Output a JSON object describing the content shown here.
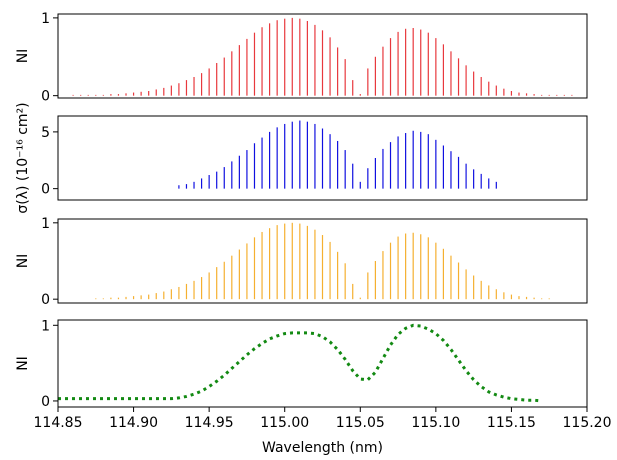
{
  "chart_data": [
    {
      "type": "stem",
      "y_label": "NI",
      "color": "#e8383d",
      "ylim": [
        -0.03,
        1.05
      ],
      "yticks": [
        0,
        1
      ],
      "xlim": [
        114.85,
        115.2
      ],
      "x": [
        114.86,
        114.865,
        114.87,
        114.875,
        114.88,
        114.885,
        114.89,
        114.895,
        114.9,
        114.905,
        114.91,
        114.915,
        114.92,
        114.925,
        114.93,
        114.935,
        114.94,
        114.945,
        114.95,
        114.955,
        114.96,
        114.965,
        114.97,
        114.975,
        114.98,
        114.985,
        114.99,
        114.995,
        115,
        115.005,
        115.01,
        115.015,
        115.02,
        115.025,
        115.03,
        115.035,
        115.04,
        115.045,
        115.05,
        115.055,
        115.06,
        115.065,
        115.07,
        115.075,
        115.08,
        115.085,
        115.09,
        115.095,
        115.1,
        115.105,
        115.11,
        115.115,
        115.12,
        115.125,
        115.13,
        115.135,
        115.14,
        115.145,
        115.15,
        115.155,
        115.16,
        115.165,
        115.17,
        115.175,
        115.18,
        115.185,
        115.19
      ],
      "values": [
        0.01,
        0.01,
        0.01,
        0.01,
        0.01,
        0.02,
        0.02,
        0.03,
        0.04,
        0.05,
        0.06,
        0.08,
        0.1,
        0.13,
        0.16,
        0.2,
        0.24,
        0.29,
        0.35,
        0.42,
        0.49,
        0.57,
        0.65,
        0.73,
        0.81,
        0.88,
        0.93,
        0.97,
        0.99,
        1.0,
        0.99,
        0.96,
        0.91,
        0.84,
        0.75,
        0.62,
        0.47,
        0.2,
        0.02,
        0.35,
        0.5,
        0.63,
        0.74,
        0.82,
        0.86,
        0.87,
        0.85,
        0.81,
        0.74,
        0.66,
        0.57,
        0.48,
        0.39,
        0.31,
        0.24,
        0.18,
        0.13,
        0.09,
        0.06,
        0.04,
        0.03,
        0.02,
        0.01,
        0.01,
        0.01,
        0.01,
        0.01
      ]
    },
    {
      "type": "stem",
      "y_label": "σ(λ) (10⁻¹⁶ cm²)",
      "color": "#1010e0",
      "ylim": [
        -1,
        6.4
      ],
      "yticks": [
        0,
        5
      ],
      "xlim": [
        114.85,
        115.2
      ],
      "x": [
        114.93,
        114.935,
        114.94,
        114.945,
        114.95,
        114.955,
        114.96,
        114.965,
        114.97,
        114.975,
        114.98,
        114.985,
        114.99,
        114.995,
        115,
        115.005,
        115.01,
        115.015,
        115.02,
        115.025,
        115.03,
        115.035,
        115.04,
        115.045,
        115.05,
        115.055,
        115.06,
        115.065,
        115.07,
        115.075,
        115.08,
        115.085,
        115.09,
        115.095,
        115.1,
        115.105,
        115.11,
        115.115,
        115.12,
        115.125,
        115.13,
        115.135,
        115.14
      ],
      "values": [
        0.3,
        0.4,
        0.6,
        0.9,
        1.2,
        1.5,
        1.9,
        2.4,
        2.9,
        3.4,
        4.0,
        4.5,
        5.0,
        5.4,
        5.7,
        5.9,
        6.0,
        5.9,
        5.7,
        5.3,
        4.8,
        4.2,
        3.4,
        2.2,
        0.6,
        1.8,
        2.7,
        3.5,
        4.1,
        4.6,
        4.9,
        5.1,
        5.0,
        4.8,
        4.3,
        3.8,
        3.3,
        2.8,
        2.2,
        1.7,
        1.3,
        0.9,
        0.6
      ]
    },
    {
      "type": "stem",
      "y_label": "NI",
      "color": "#f5b030",
      "ylim": [
        -0.05,
        1.05
      ],
      "yticks": [
        0,
        1
      ],
      "xlim": [
        114.85,
        115.2
      ],
      "x": [
        114.875,
        114.88,
        114.885,
        114.89,
        114.895,
        114.9,
        114.905,
        114.91,
        114.915,
        114.92,
        114.925,
        114.93,
        114.935,
        114.94,
        114.945,
        114.95,
        114.955,
        114.96,
        114.965,
        114.97,
        114.975,
        114.98,
        114.985,
        114.99,
        114.995,
        115,
        115.005,
        115.01,
        115.015,
        115.02,
        115.025,
        115.03,
        115.035,
        115.04,
        115.045,
        115.05,
        115.055,
        115.06,
        115.065,
        115.07,
        115.075,
        115.08,
        115.085,
        115.09,
        115.095,
        115.1,
        115.105,
        115.11,
        115.115,
        115.12,
        115.125,
        115.13,
        115.135,
        115.14,
        115.145,
        115.15,
        115.155,
        115.16,
        115.165,
        115.17,
        115.175
      ],
      "values": [
        0.01,
        0.01,
        0.02,
        0.02,
        0.03,
        0.04,
        0.05,
        0.06,
        0.08,
        0.1,
        0.13,
        0.16,
        0.2,
        0.24,
        0.29,
        0.35,
        0.42,
        0.49,
        0.57,
        0.65,
        0.73,
        0.81,
        0.88,
        0.93,
        0.97,
        0.99,
        1.0,
        0.99,
        0.96,
        0.91,
        0.84,
        0.75,
        0.62,
        0.47,
        0.2,
        0.02,
        0.35,
        0.5,
        0.63,
        0.74,
        0.82,
        0.86,
        0.87,
        0.85,
        0.81,
        0.74,
        0.66,
        0.57,
        0.48,
        0.39,
        0.31,
        0.24,
        0.18,
        0.13,
        0.09,
        0.06,
        0.04,
        0.03,
        0.02,
        0.01,
        0.01
      ]
    },
    {
      "type": "line",
      "y_label": "NI",
      "color": "#138a13",
      "ylim": [
        -0.08,
        1.07
      ],
      "yticks": [
        0,
        1
      ],
      "xlim": [
        114.85,
        115.2
      ],
      "x_label": "Wavelength (nm)",
      "xticks": [
        {
          "value": 114.85,
          "label": "114.85"
        },
        {
          "value": 114.9,
          "label": "114.90"
        },
        {
          "value": 114.95,
          "label": "114.95"
        },
        {
          "value": 115.0,
          "label": "115.00"
        },
        {
          "value": 115.05,
          "label": "115.05"
        },
        {
          "value": 115.1,
          "label": "115.10"
        },
        {
          "value": 115.15,
          "label": "115.15"
        },
        {
          "value": 115.2,
          "label": "115.20"
        }
      ],
      "x": [
        114.85,
        114.855,
        114.86,
        114.865,
        114.87,
        114.875,
        114.88,
        114.885,
        114.89,
        114.895,
        114.9,
        114.905,
        114.91,
        114.915,
        114.92,
        114.925,
        114.93,
        114.935,
        114.94,
        114.945,
        114.95,
        114.955,
        114.96,
        114.965,
        114.97,
        114.975,
        114.98,
        114.985,
        114.99,
        114.995,
        115,
        115.005,
        115.01,
        115.015,
        115.02,
        115.025,
        115.03,
        115.035,
        115.04,
        115.045,
        115.05,
        115.055,
        115.06,
        115.065,
        115.07,
        115.075,
        115.08,
        115.085,
        115.09,
        115.095,
        115.1,
        115.105,
        115.11,
        115.115,
        115.12,
        115.125,
        115.13,
        115.135,
        115.14,
        115.145,
        115.15,
        115.155,
        115.16,
        115.165,
        115.17
      ],
      "values": [
        0.03,
        0.03,
        0.03,
        0.03,
        0.03,
        0.03,
        0.03,
        0.03,
        0.03,
        0.03,
        0.03,
        0.03,
        0.03,
        0.03,
        0.03,
        0.03,
        0.04,
        0.06,
        0.09,
        0.13,
        0.19,
        0.26,
        0.34,
        0.43,
        0.52,
        0.61,
        0.69,
        0.76,
        0.82,
        0.86,
        0.89,
        0.9,
        0.9,
        0.9,
        0.89,
        0.85,
        0.78,
        0.68,
        0.55,
        0.4,
        0.29,
        0.28,
        0.38,
        0.56,
        0.74,
        0.88,
        0.96,
        1.0,
        0.99,
        0.95,
        0.89,
        0.8,
        0.68,
        0.54,
        0.4,
        0.28,
        0.19,
        0.12,
        0.08,
        0.05,
        0.03,
        0.02,
        0.01,
        0.01,
        0.0
      ]
    }
  ]
}
